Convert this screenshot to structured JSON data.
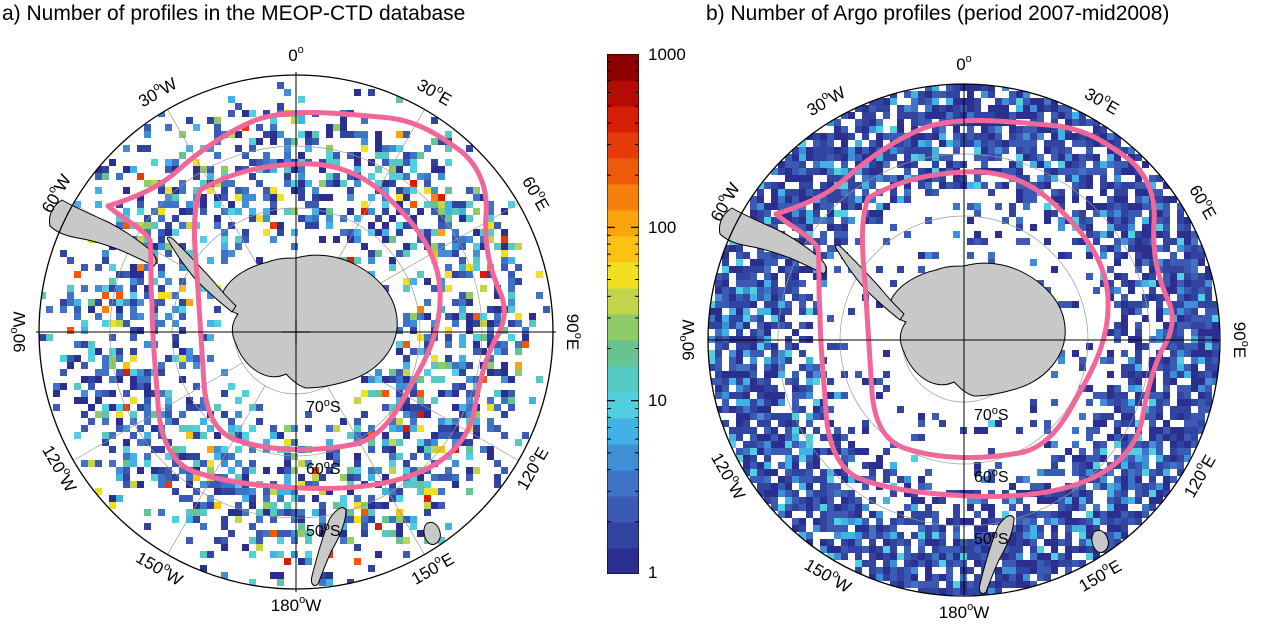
{
  "panels": [
    {
      "id": "a",
      "title": "a) Number of profiles in the MEOP-CTD database",
      "lon_labels": [
        {
          "deg": "0",
          "hemi": ""
        },
        {
          "deg": "30",
          "hemi": "E"
        },
        {
          "deg": "60",
          "hemi": "E"
        },
        {
          "deg": "90",
          "hemi": "E"
        },
        {
          "deg": "120",
          "hemi": "E"
        },
        {
          "deg": "150",
          "hemi": "E"
        },
        {
          "deg": "180",
          "hemi": "W"
        },
        {
          "deg": "150",
          "hemi": "W"
        },
        {
          "deg": "120",
          "hemi": "W"
        },
        {
          "deg": "90",
          "hemi": "W"
        },
        {
          "deg": "60",
          "hemi": "W"
        },
        {
          "deg": "30",
          "hemi": "W"
        }
      ],
      "lat_labels": [
        {
          "deg": "70",
          "hemi": "S"
        },
        {
          "deg": "60",
          "hemi": "S"
        },
        {
          "deg": "50",
          "hemi": "S"
        }
      ]
    },
    {
      "id": "b",
      "title": "b) Number of Argo profiles (period 2007-mid2008)",
      "lon_labels": [
        {
          "deg": "0",
          "hemi": ""
        },
        {
          "deg": "30",
          "hemi": "E"
        },
        {
          "deg": "60",
          "hemi": "E"
        },
        {
          "deg": "90",
          "hemi": "E"
        },
        {
          "deg": "120",
          "hemi": "E"
        },
        {
          "deg": "150",
          "hemi": "E"
        },
        {
          "deg": "180",
          "hemi": "W"
        },
        {
          "deg": "150",
          "hemi": "W"
        },
        {
          "deg": "120",
          "hemi": "W"
        },
        {
          "deg": "90",
          "hemi": "W"
        },
        {
          "deg": "60",
          "hemi": "W"
        },
        {
          "deg": "30",
          "hemi": "W"
        }
      ],
      "lat_labels": [
        {
          "deg": "70",
          "hemi": "S"
        },
        {
          "deg": "60",
          "hemi": "S"
        },
        {
          "deg": "50",
          "hemi": "S"
        }
      ]
    }
  ],
  "colorbar": {
    "scale": "log",
    "range": [
      1,
      1000
    ],
    "tick_labels": [
      "1000",
      "100",
      "10",
      "1"
    ],
    "colors": [
      "#2b2f8f",
      "#3145a0",
      "#3a5ab4",
      "#3e73c6",
      "#3f8fd6",
      "#40b2e6",
      "#4fcfe0",
      "#55c9c2",
      "#66c493",
      "#8fcb66",
      "#c2d44a",
      "#f0e020",
      "#fbc214",
      "#fba410",
      "#f5800c",
      "#ee5a0a",
      "#e53b08",
      "#d61e06",
      "#b40c04",
      "#8c0000"
    ]
  },
  "fronts_color": "#f2679a",
  "land_color": "#c8c8c8"
}
